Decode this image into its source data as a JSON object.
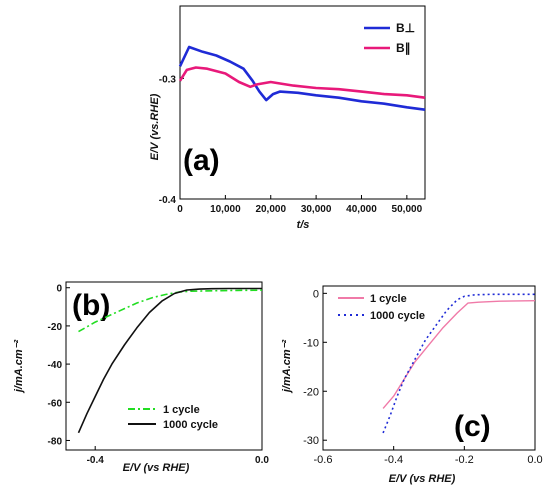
{
  "chart_data": [
    {
      "panel": "(a)",
      "type": "line",
      "xlabel": "t/s",
      "ylabel": "E/V (vs.RHE)",
      "xlim": [
        0,
        54000
      ],
      "ylim": [
        -0.4,
        -0.24
      ],
      "x_ticks": [
        0,
        10000,
        20000,
        30000,
        40000,
        50000
      ],
      "x_tick_labels": [
        "0",
        "10,000",
        "20,000",
        "30,000",
        "40,000",
        "50,000"
      ],
      "y_ticks": [
        -0.3,
        -0.4
      ],
      "y_tick_labels": [
        "-0.3",
        "-0.4"
      ],
      "legend_position": "top-right",
      "series": [
        {
          "name": "B⊥",
          "color": "#1f2bd6",
          "x": [
            0,
            2000,
            5000,
            8000,
            11000,
            14000,
            16000,
            17500,
            19000,
            20500,
            22000,
            26000,
            30000,
            35000,
            40000,
            45000,
            50000,
            54000
          ],
          "y": [
            -0.29,
            -0.274,
            -0.278,
            -0.281,
            -0.286,
            -0.292,
            -0.302,
            -0.311,
            -0.318,
            -0.313,
            -0.311,
            -0.312,
            -0.314,
            -0.316,
            -0.319,
            -0.321,
            -0.324,
            -0.326
          ]
        },
        {
          "name": "B∥",
          "color": "#e8197a",
          "x": [
            0,
            1500,
            3500,
            6000,
            10000,
            13000,
            15500,
            17000,
            20000,
            25000,
            30000,
            35000,
            40000,
            45000,
            50000,
            54000
          ],
          "y": [
            -0.302,
            -0.293,
            -0.291,
            -0.292,
            -0.296,
            -0.303,
            -0.307,
            -0.305,
            -0.303,
            -0.306,
            -0.308,
            -0.309,
            -0.311,
            -0.313,
            -0.314,
            -0.316
          ]
        }
      ]
    },
    {
      "panel": "(b)",
      "type": "line",
      "xlabel": "E/V (vs RHE)",
      "ylabel": "j/mA.cm⁻²",
      "xlim": [
        -0.47,
        0.0
      ],
      "ylim": [
        -85,
        3
      ],
      "x_ticks": [
        -0.4,
        0.0
      ],
      "x_tick_labels": [
        "-0.4",
        "0.0"
      ],
      "y_ticks": [
        0,
        -20,
        -40,
        -60,
        -80
      ],
      "y_tick_labels": [
        "0",
        "-20",
        "-40",
        "-60",
        "-80"
      ],
      "legend_position": "bottom-right",
      "series": [
        {
          "name": "1 cycle",
          "color": "#22dd22",
          "x": [
            -0.44,
            -0.4,
            -0.35,
            -0.3,
            -0.26,
            -0.23,
            -0.2,
            -0.17,
            -0.12,
            -0.06,
            0.0
          ],
          "y": [
            -23,
            -18,
            -13,
            -8,
            -5,
            -3.5,
            -2.3,
            -1.8,
            -1.6,
            -1.4,
            -1.3
          ]
        },
        {
          "name": "1000 cycle",
          "color": "#111111",
          "x": [
            -0.44,
            -0.42,
            -0.4,
            -0.38,
            -0.36,
            -0.33,
            -0.3,
            -0.27,
            -0.24,
            -0.21,
            -0.18,
            -0.15,
            -0.12,
            -0.08,
            -0.04,
            0.0
          ],
          "y": [
            -76,
            -66,
            -57,
            -48,
            -40,
            -30,
            -21,
            -13,
            -7,
            -3,
            -1.2,
            -0.7,
            -0.5,
            -0.4,
            -0.4,
            -0.4
          ]
        }
      ]
    },
    {
      "panel": "(c)",
      "type": "line",
      "xlabel": "E/V (vs RHE)",
      "ylabel": "j/mA.cm⁻²",
      "xlim": [
        -0.6,
        0.0
      ],
      "ylim": [
        -32,
        1.5
      ],
      "x_ticks": [
        -0.6,
        -0.4,
        -0.2,
        0.0
      ],
      "x_tick_labels": [
        "-0.6",
        "-0.4",
        "-0.2",
        "0.0"
      ],
      "y_ticks": [
        0,
        -10,
        -20,
        -30
      ],
      "y_tick_labels": [
        "0",
        "-10",
        "-20",
        "-30"
      ],
      "legend_position": "top-left",
      "series": [
        {
          "name": "1 cycle",
          "color": "#f07aa8",
          "x": [
            -0.43,
            -0.4,
            -0.37,
            -0.34,
            -0.3,
            -0.26,
            -0.22,
            -0.19,
            -0.16,
            -0.1,
            0.0
          ],
          "y": [
            -23.5,
            -21,
            -17.5,
            -14,
            -10.5,
            -7,
            -4,
            -2,
            -1.8,
            -1.6,
            -1.5
          ]
        },
        {
          "name": "1000 cycle",
          "color": "#1f2bd6",
          "x": [
            -0.43,
            -0.41,
            -0.39,
            -0.37,
            -0.34,
            -0.31,
            -0.28,
            -0.25,
            -0.22,
            -0.2,
            -0.17,
            -0.12,
            -0.06,
            0.0
          ],
          "y": [
            -28.5,
            -25,
            -21,
            -17.5,
            -13.5,
            -9.5,
            -6.5,
            -3.5,
            -1.3,
            -0.6,
            -0.3,
            -0.2,
            -0.2,
            -0.2
          ]
        }
      ]
    }
  ]
}
